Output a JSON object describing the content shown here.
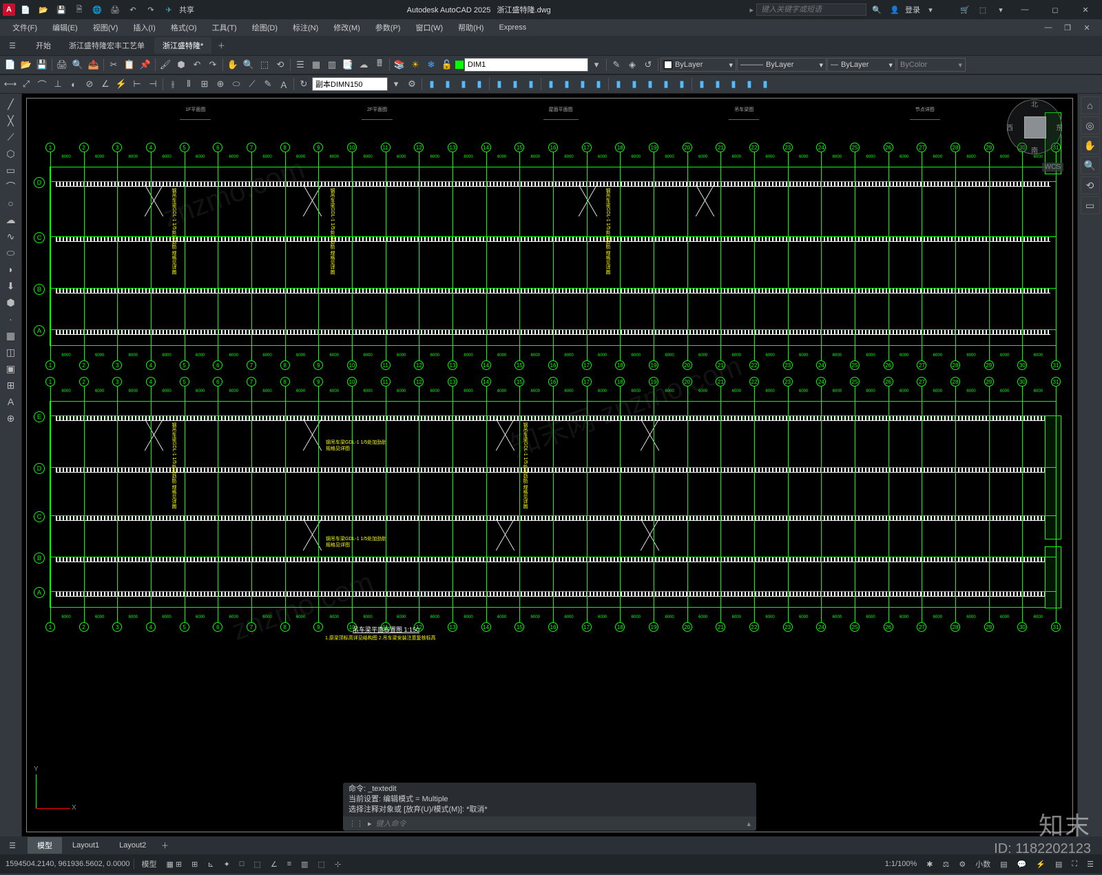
{
  "app": {
    "title": "Autodesk AutoCAD 2025",
    "doc": "浙江盛特隆.dwg",
    "icon": "A"
  },
  "search": {
    "placeholder": "键入关键字或短语"
  },
  "login": {
    "label": "登录"
  },
  "menus": [
    "文件(F)",
    "编辑(E)",
    "视图(V)",
    "插入(I)",
    "格式(O)",
    "工具(T)",
    "绘图(D)",
    "标注(N)",
    "修改(M)",
    "参数(P)",
    "窗口(W)",
    "帮助(H)",
    "Express"
  ],
  "share": "共享",
  "filetabs": {
    "items": [
      "开始",
      "浙江盛特隆宏丰工艺单",
      "浙江盛特隆*"
    ],
    "active": 2
  },
  "layer": {
    "current": "DIM1",
    "color": "#00ff00"
  },
  "props": {
    "bylayer1": "ByLayer",
    "lw": "ByLayer",
    "lt": "ByLayer",
    "bycolor": "ByColor"
  },
  "dimstyle": "副本DIMN150",
  "viewcube": {
    "n": "北",
    "s": "南",
    "e": "东",
    "w": "西",
    "wcs": "WCS"
  },
  "cmd": {
    "h1": "命令: _textedit",
    "h2": "当前设置: 编辑模式 = Multiple",
    "h3": "选择注释对象或 [放弃(U)/模式(M)]: *取消*",
    "prompt": "▸",
    "placeholder": "键入命令"
  },
  "btabs": {
    "items": [
      "模型",
      "Layout1",
      "Layout2"
    ],
    "active": 0
  },
  "status": {
    "coords": "1594504.2140, 961936.5602, 0.0000",
    "model": "模型",
    "grid": "▦ ⊞",
    "snap": "∟",
    "ortho": "⊾",
    "polar": "✦",
    "osnap": "□",
    "lwt": "≡",
    "trans": "▥",
    "sel": "⬚",
    "scale": "1:1/100%",
    "anno": "✱",
    "dec": "小数",
    "gear": "⚙",
    "iso": "▤",
    "full": "⛶"
  },
  "watermark": "知末",
  "id": "ID: 1182202123",
  "dwg": {
    "cols": 30,
    "rows1": [
      "A",
      "B",
      "C",
      "D"
    ],
    "rows2": [
      "A",
      "B",
      "C",
      "D",
      "E"
    ],
    "title2": "吊车梁平面布置图  1:150",
    "note": "1.原梁顶标高详见结构图\n2.吊车梁安装注意复核标高"
  },
  "annot": {
    "t1": "钢吊车梁GDL-1 1/5处加劲肋\n规格见详图"
  }
}
